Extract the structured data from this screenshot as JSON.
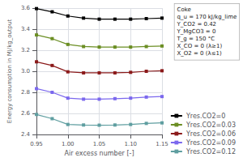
{
  "chart_data": {
    "type": "line",
    "x": [
      0.95,
      0.975,
      1.0,
      1.025,
      1.05,
      1.075,
      1.1,
      1.125,
      1.15
    ],
    "series": [
      {
        "name": "Yres.CO2=0",
        "color": "#000000",
        "values": [
          3.595,
          3.565,
          3.525,
          3.505,
          3.495,
          3.495,
          3.495,
          3.5,
          3.505
        ]
      },
      {
        "name": "Yres.CO2=0.03",
        "color": "#6b8e23",
        "values": [
          3.345,
          3.31,
          3.255,
          3.235,
          3.23,
          3.23,
          3.23,
          3.235,
          3.24
        ]
      },
      {
        "name": "Yres.CO2=0.06",
        "color": "#8b1a1a",
        "values": [
          3.09,
          3.055,
          2.995,
          2.985,
          2.985,
          2.985,
          2.99,
          3.0,
          3.005
        ]
      },
      {
        "name": "Yres.CO2=0.09",
        "color": "#7b68ee",
        "values": [
          2.835,
          2.8,
          2.745,
          2.735,
          2.735,
          2.74,
          2.745,
          2.755,
          2.76
        ]
      },
      {
        "name": "Yres.CO2=0.12",
        "color": "#5f9ea0",
        "values": [
          2.59,
          2.55,
          2.495,
          2.49,
          2.488,
          2.49,
          2.495,
          2.505,
          2.51
        ]
      }
    ],
    "xlabel": "Air excess number [-]",
    "ylabel": "Energy consumption in MJ/kg_output",
    "xlim": [
      0.95,
      1.15
    ],
    "xticks": [
      0.95,
      {
        "value": 1.0,
        "label": "1.00"
      },
      1.05,
      {
        "value": 1.1,
        "label": "1.10"
      },
      1.15
    ],
    "ylim": [
      2.4,
      3.6
    ],
    "yticks": [
      2.4,
      2.6,
      2.8,
      {
        "value": 3.0,
        "label": "3.0"
      },
      3.2,
      3.4,
      3.6
    ],
    "grid": true,
    "legend": "lower right",
    "marker": "square",
    "line_style": "solid",
    "annotations": [
      "Coke",
      "q_u = 170 kJ/kg_lime",
      "Y_CO2 = 0.42",
      "Y_MgCO3 = 0",
      "T_g = 150 °C",
      "X_CO = 0 (λ≥1)",
      "X_O2 = 0 (λ≤1)"
    ]
  }
}
